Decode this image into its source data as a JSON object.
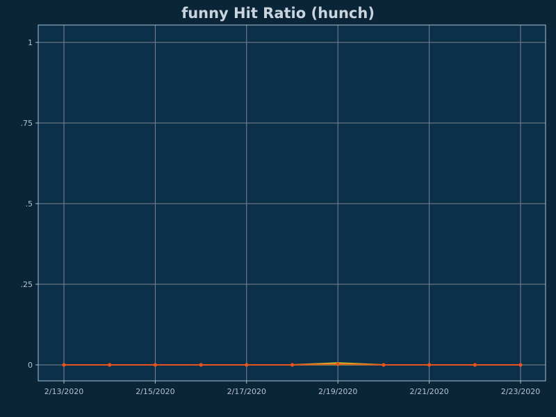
{
  "chart_data": {
    "type": "line",
    "title": "funny Hit Ratio (hunch)",
    "xlabel": "",
    "ylabel": "",
    "x": [
      "2/13/2020",
      "2/14/2020",
      "2/15/2020",
      "2/16/2020",
      "2/17/2020",
      "2/18/2020",
      "2/19/2020",
      "2/20/2020",
      "2/21/2020",
      "2/22/2020",
      "2/23/2020"
    ],
    "x_tick_labels": [
      "2/13/2020",
      "2/15/2020",
      "2/17/2020",
      "2/19/2020",
      "2/21/2020",
      "2/23/2020"
    ],
    "y_tick_labels": [
      "0",
      ".25",
      ".5",
      ".75",
      "1"
    ],
    "y_ticks": [
      0,
      0.25,
      0.5,
      0.75,
      1
    ],
    "ylim": [
      -0.05,
      1.05
    ],
    "grid": true,
    "series": [
      {
        "color": "#d4c02a",
        "values": [
          0,
          0,
          0,
          0,
          0,
          0,
          0.006,
          0,
          0,
          0,
          0
        ]
      },
      {
        "color": "#3aa56a",
        "values": [
          0,
          0,
          0,
          0,
          0,
          0,
          0,
          0,
          0,
          0,
          0
        ]
      },
      {
        "color": "#e8541e",
        "values": [
          0,
          0,
          0,
          0,
          0,
          0,
          0.002,
          0,
          0,
          0,
          0
        ]
      }
    ]
  },
  "colors": {
    "page_background": "#0b2538",
    "plot_background": "#0c2f4a",
    "grid": "#7f8891",
    "frame": "#a9c3d6"
  }
}
